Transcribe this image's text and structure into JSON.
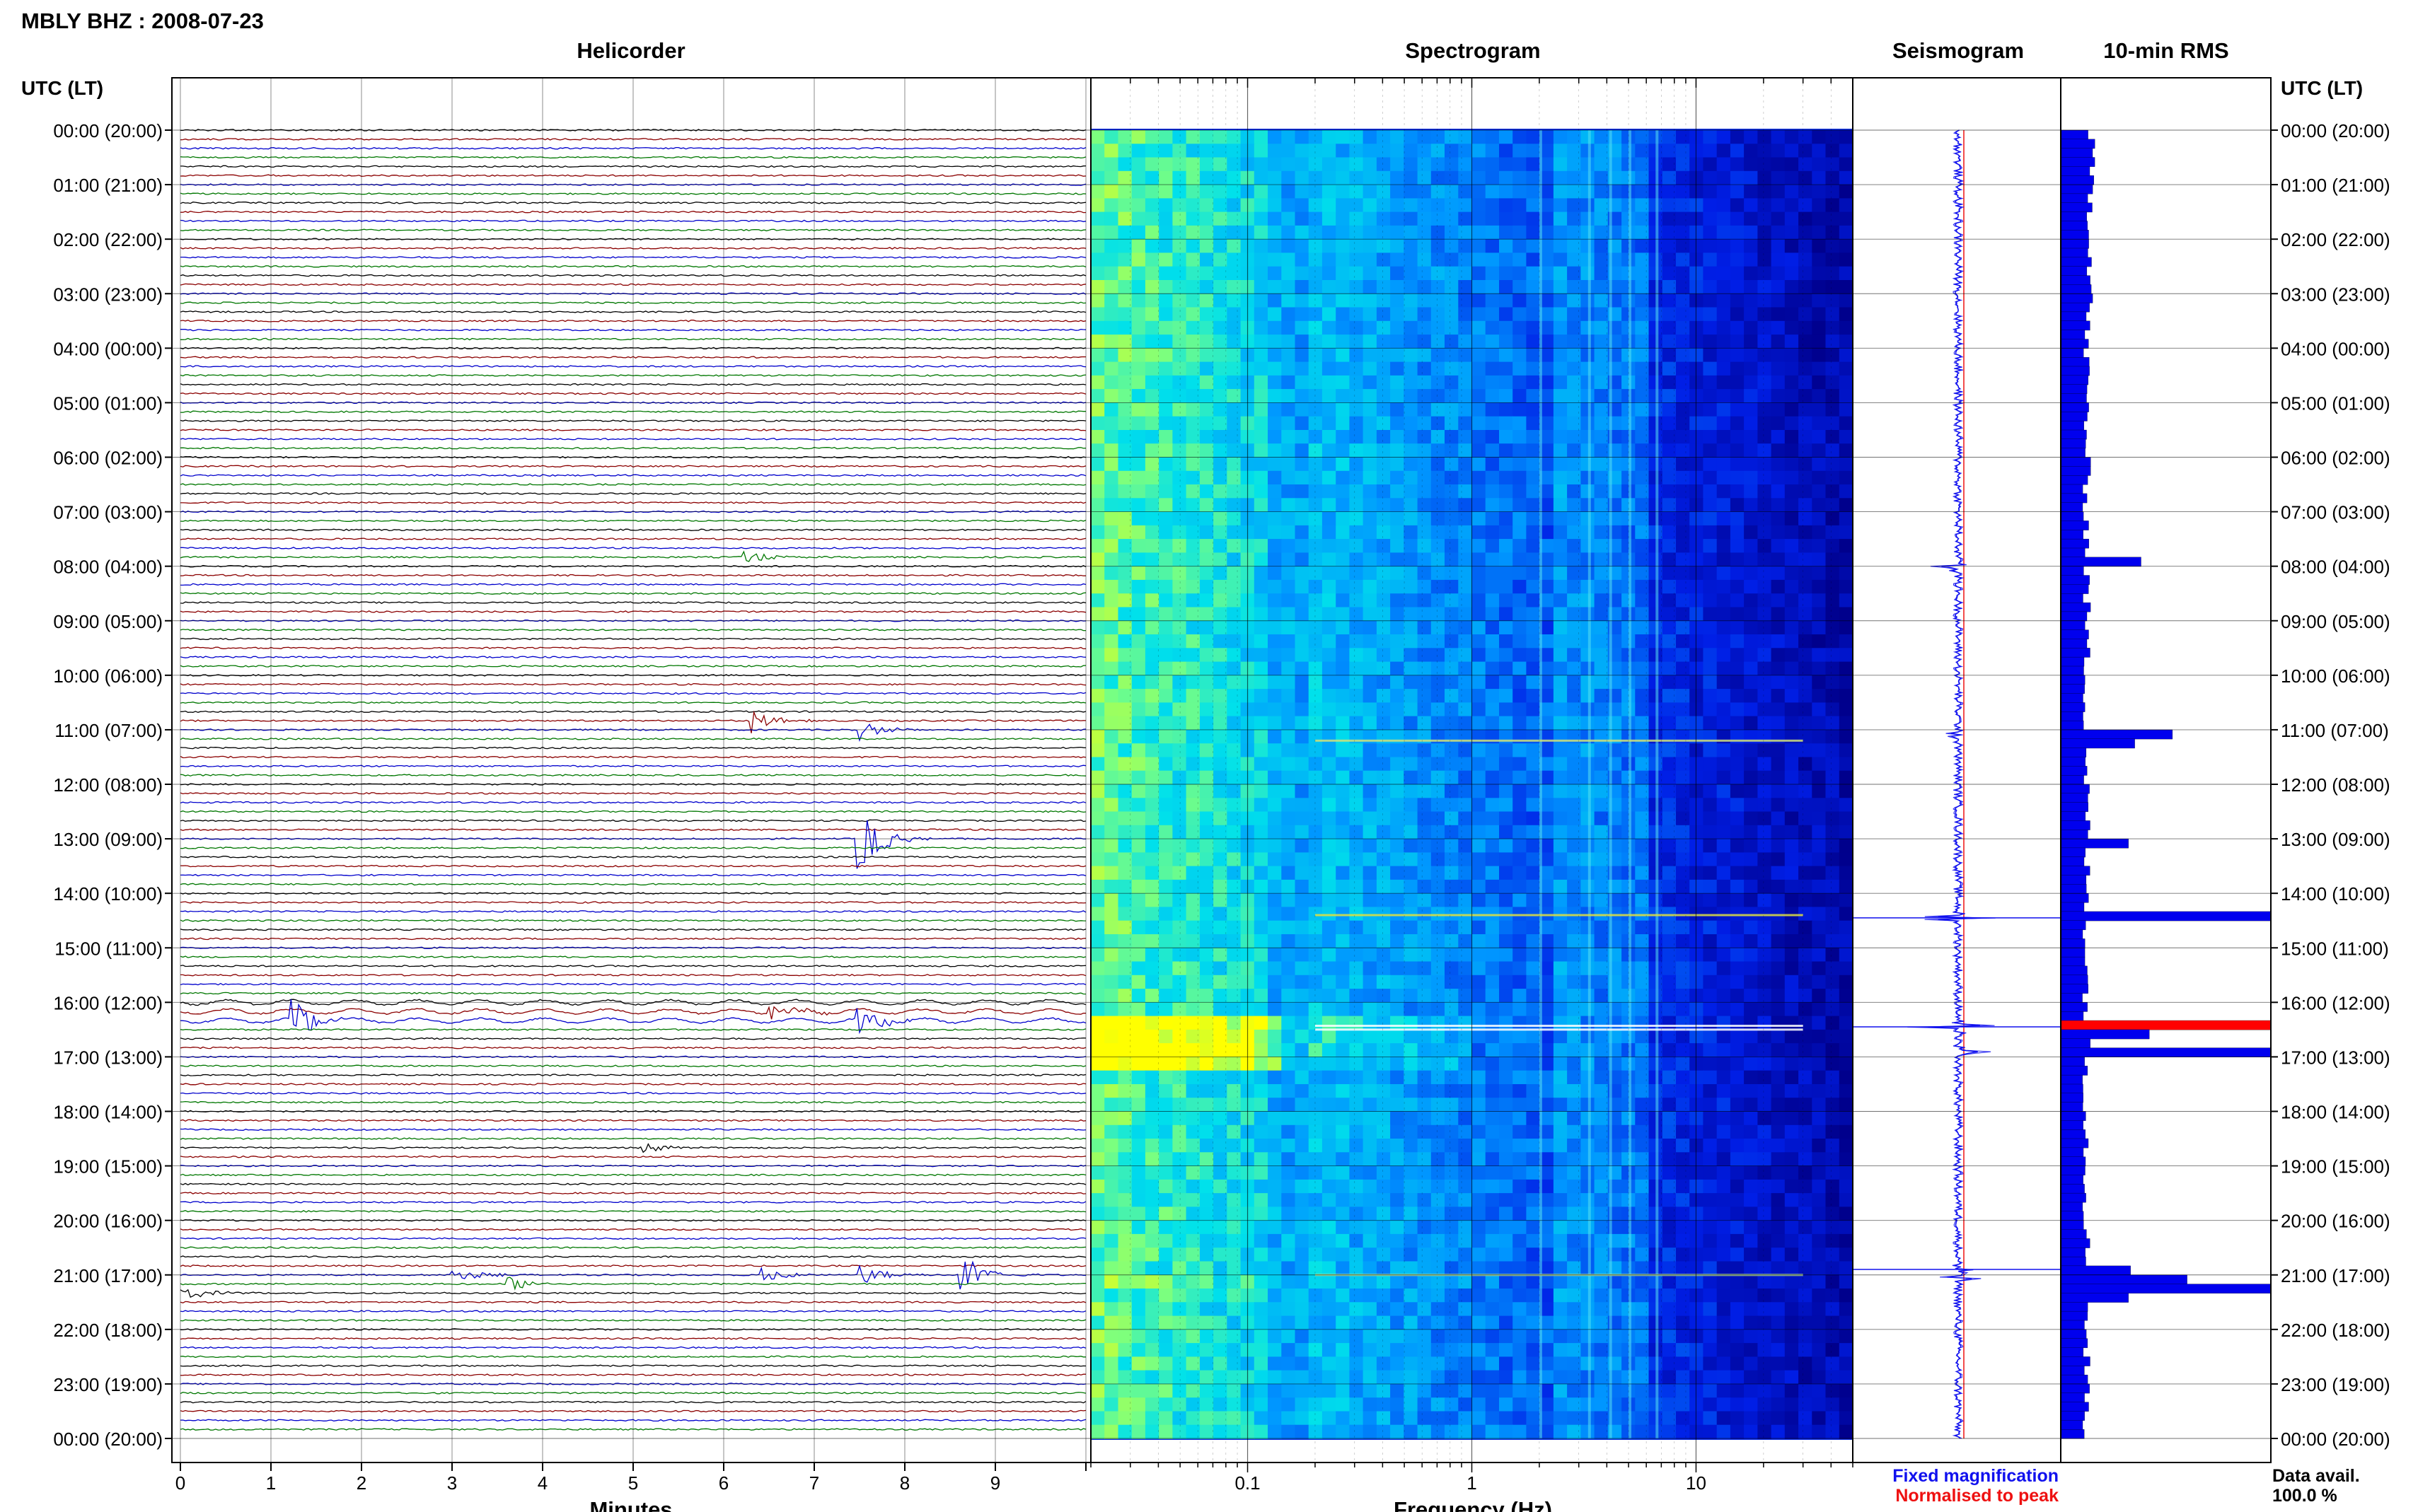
{
  "header": {
    "station": "MBLY BHZ : 2008-07-23"
  },
  "panels": {
    "helicorder": "Helicorder",
    "spectrogram": "Spectrogram",
    "seismogram": "Seismogram",
    "rms": "10-min RMS"
  },
  "axes": {
    "time_label_left": "UTC (LT)",
    "time_label_right": "UTC (LT)",
    "minutes_label": "Minutes",
    "frequency_label": "Frequency (Hz)"
  },
  "legend": {
    "fixed": "Fixed magnification",
    "normalised": "Normalised to peak",
    "data_avail_label": "Data avail.",
    "data_avail_value": "100.0 %"
  },
  "colors": {
    "trace_colors": [
      "#000000",
      "#8b0000",
      "#0000cc",
      "#007700"
    ],
    "fixed_legend": "#1111ee",
    "normalised_legend": "#ee1111",
    "rms_bar": "#0000ee",
    "rms_peak": "#ff0000"
  },
  "chart_data": [
    {
      "type": "line",
      "title": "Helicorder",
      "xlabel": "Minutes",
      "xlim": [
        0,
        10
      ],
      "x_ticks": [
        "0",
        "1",
        "2",
        "3",
        "4",
        "5",
        "6",
        "7",
        "8",
        "9"
      ],
      "rows": 144,
      "row_minutes": 10,
      "y_ticks": [
        "00:00 (20:00)",
        "01:00 (21:00)",
        "02:00 (22:00)",
        "03:00 (23:00)",
        "04:00 (00:00)",
        "05:00 (01:00)",
        "06:00 (02:00)",
        "07:00 (03:00)",
        "08:00 (04:00)",
        "09:00 (05:00)",
        "10:00 (06:00)",
        "11:00 (07:00)",
        "12:00 (08:00)",
        "13:00 (09:00)",
        "14:00 (10:00)",
        "15:00 (11:00)",
        "16:00 (12:00)",
        "17:00 (13:00)",
        "18:00 (14:00)",
        "19:00 (15:00)",
        "20:00 (16:00)",
        "21:00 (17:00)",
        "22:00 (18:00)",
        "23:00 (19:00)",
        "00:00 (20:00)"
      ],
      "events": [
        {
          "row": 47,
          "minute": 6.2,
          "amp": 0.9
        },
        {
          "row": 65,
          "minute": 6.3,
          "amp": 1.3
        },
        {
          "row": 66,
          "minute": 7.5,
          "amp": 1.1
        },
        {
          "row": 78,
          "minute": 7.45,
          "amp": 4.5
        },
        {
          "row": 98,
          "minute": 1.2,
          "amp": 2.8
        },
        {
          "row": 98,
          "minute": 7.45,
          "amp": 2.2
        },
        {
          "row": 97,
          "minute": 6.5,
          "amp": 1.2
        },
        {
          "row": 126,
          "minute": 8.6,
          "amp": 2.5
        },
        {
          "row": 126,
          "minute": 7.5,
          "amp": 1.2
        },
        {
          "row": 126,
          "minute": 6.4,
          "amp": 1.0
        },
        {
          "row": 126,
          "minute": 3.0,
          "amp": 1.0
        },
        {
          "row": 127,
          "minute": 3.6,
          "amp": 1.0
        },
        {
          "row": 128,
          "minute": 0.0,
          "amp": 1.0
        },
        {
          "row": 112,
          "minute": 5.1,
          "amp": 0.6
        }
      ]
    },
    {
      "type": "heatmap",
      "title": "Spectrogram",
      "xlabel": "Frequency (Hz)",
      "x_scale": "log",
      "xlim": [
        0.02,
        50
      ],
      "x_ticks": [
        "0.1",
        "1",
        "10"
      ]
    },
    {
      "type": "line",
      "title": "Seismogram",
      "series": [
        {
          "name": "Fixed magnification",
          "color": "#1111ee"
        },
        {
          "name": "Normalised to peak",
          "color": "#ee1111"
        }
      ],
      "bursts": [
        {
          "hour": 8,
          "amp": 0.55
        },
        {
          "hour": 11.1,
          "amp": 0.4
        },
        {
          "hour": 14.45,
          "amp": 1.0
        },
        {
          "hour": 16.45,
          "amp": 1.0
        },
        {
          "hour": 16.9,
          "amp": 0.5
        },
        {
          "hour": 20.9,
          "amp": 0.8
        },
        {
          "hour": 21.05,
          "amp": 0.5
        }
      ]
    },
    {
      "type": "bar",
      "title": "10-min RMS",
      "orientation": "horizontal",
      "bins": 144,
      "baseline": 0.12,
      "peaks": [
        {
          "bin": 47,
          "value": 0.38
        },
        {
          "bin": 66,
          "value": 0.53
        },
        {
          "bin": 67,
          "value": 0.35
        },
        {
          "bin": 78,
          "value": 0.32
        },
        {
          "bin": 86,
          "value": 1.0
        },
        {
          "bin": 98,
          "value": 1.0,
          "color": "#ff0000"
        },
        {
          "bin": 99,
          "value": 0.42
        },
        {
          "bin": 101,
          "value": 1.0
        },
        {
          "bin": 125,
          "value": 0.33
        },
        {
          "bin": 126,
          "value": 0.6
        },
        {
          "bin": 127,
          "value": 1.0
        },
        {
          "bin": 128,
          "value": 0.32
        }
      ]
    }
  ]
}
